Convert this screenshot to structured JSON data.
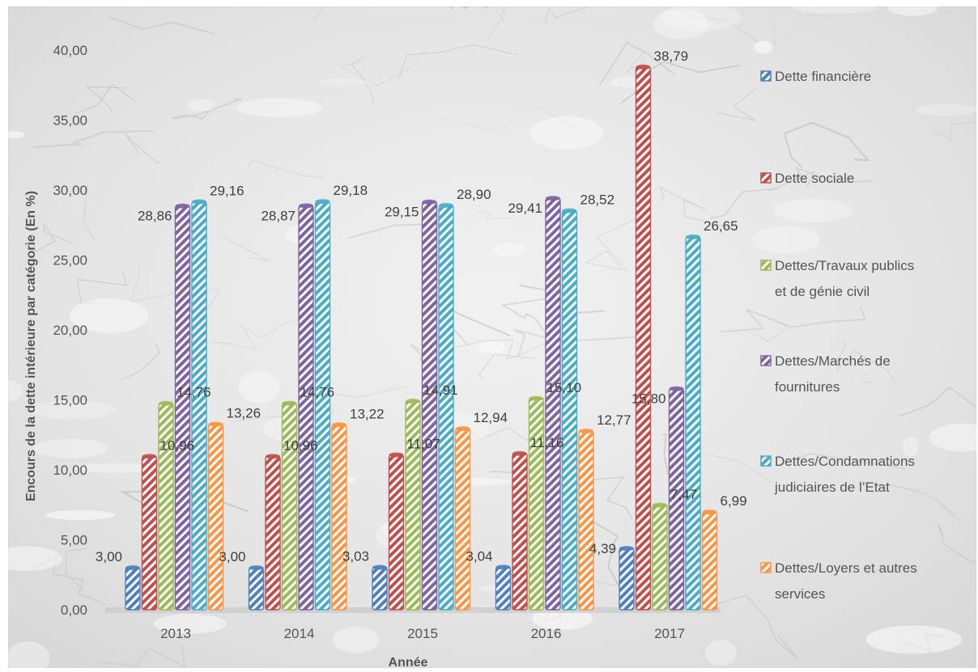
{
  "chart_data": {
    "type": "bar",
    "title": "",
    "xlabel": "Année",
    "ylabel": "Encours de la dette intérieure par catégorie  (En %)",
    "categories": [
      "2013",
      "2014",
      "2015",
      "2016",
      "2017"
    ],
    "ylim": [
      0,
      40
    ],
    "yticks": [
      "0,00",
      "5,00",
      "10,00",
      "15,00",
      "20,00",
      "25,00",
      "30,00",
      "35,00",
      "40,00"
    ],
    "grid": false,
    "legend_position": "right",
    "series": [
      {
        "name": "Dette financière",
        "color": "#4f81bd",
        "values": [
          3.0,
          3.0,
          3.03,
          3.04,
          4.39
        ],
        "labels": [
          "3,00",
          "3,00",
          "3,03",
          "3,04",
          "4,39"
        ]
      },
      {
        "name": "Dette sociale",
        "color": "#c0504d",
        "values": [
          10.96,
          10.96,
          11.07,
          11.16,
          38.79
        ],
        "labels": [
          "10,96",
          "10,96",
          "11,07",
          "11,16",
          "38,79"
        ]
      },
      {
        "name": "Dettes/Travaux publics et de génie civil",
        "color": "#9bbb59",
        "values": [
          14.76,
          14.76,
          14.91,
          15.1,
          7.47
        ],
        "labels": [
          "14,76",
          "14,76",
          "14,91",
          "15,10",
          "7,47"
        ]
      },
      {
        "name": "Dettes/Marchés de fournitures",
        "color": "#8064a2",
        "values": [
          28.86,
          28.87,
          29.15,
          29.41,
          15.8
        ],
        "labels": [
          "28,86",
          "28,87",
          "29,15",
          "29,41",
          "15,80"
        ]
      },
      {
        "name": "Dettes/Condamnations judiciaires de l’Etat",
        "color": "#4bacc6",
        "values": [
          29.16,
          29.18,
          28.9,
          28.52,
          26.65
        ],
        "labels": [
          "29,16",
          "29,18",
          "28,90",
          "28,52",
          "26,65"
        ]
      },
      {
        "name": "Dettes/Loyers et autres services",
        "color": "#f79646",
        "values": [
          13.26,
          13.22,
          12.94,
          12.77,
          6.99
        ],
        "labels": [
          "13,26",
          "13,22",
          "12,94",
          "12,77",
          "6,99"
        ]
      }
    ],
    "legend_lines": [
      [
        "Dette financière"
      ],
      [
        "Dette sociale"
      ],
      [
        "Dettes/Travaux publics",
        "et de génie civil"
      ],
      [
        "Dettes/Marchés de",
        "fournitures"
      ],
      [
        "Dettes/Condamnations",
        "judiciaires de l’Etat"
      ],
      [
        "Dettes/Loyers et autres",
        "services"
      ]
    ]
  }
}
